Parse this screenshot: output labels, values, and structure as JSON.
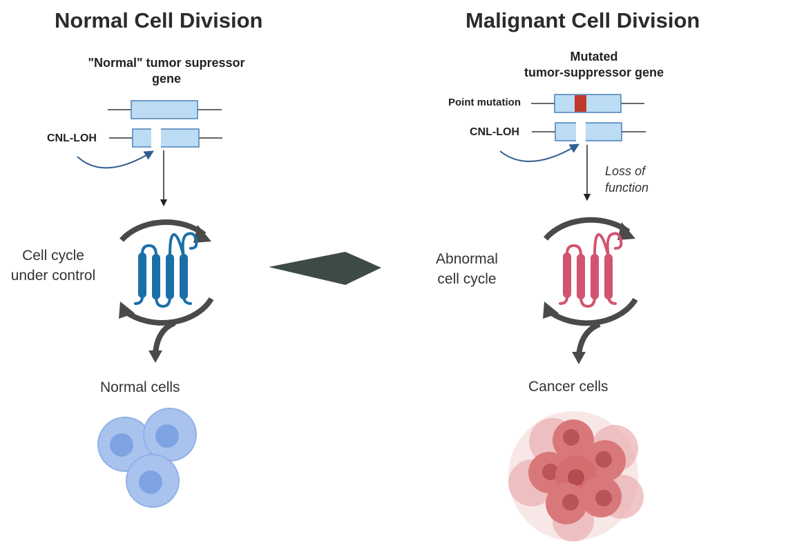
{
  "left": {
    "title": "Normal Cell Division",
    "gene_label_line1": "\"Normal\" tumor supressor",
    "gene_label_line2": "gene",
    "cnl_loh": "CNL-LOH",
    "cycle_line1": "Cell cycle",
    "cycle_line2": "under control",
    "cells_label": "Normal cells",
    "protein_color": "#1a6fa8",
    "cell_color": "#a9c3ee"
  },
  "right": {
    "title": "Malignant Cell Division",
    "gene_label_line1": "Mutated",
    "gene_label_line2": "tumor-suppressor gene",
    "point_mutation": "Point mutation",
    "cnl_loh": "CNL-LOH",
    "loss_line1": "Loss of",
    "loss_line2": "function",
    "cycle_line1": "Abnormal",
    "cycle_line2": "cell cycle",
    "cells_label": "Cancer cells",
    "protein_color": "#d2546f",
    "mutation_color": "#c0392b",
    "cell_color": "#d9787a"
  },
  "colors": {
    "gene_box": "#bcdcf3",
    "gene_border": "#4a7fb8",
    "cycle_arrow": "#4a4a4a",
    "big_arrow": "#3d4a48"
  }
}
